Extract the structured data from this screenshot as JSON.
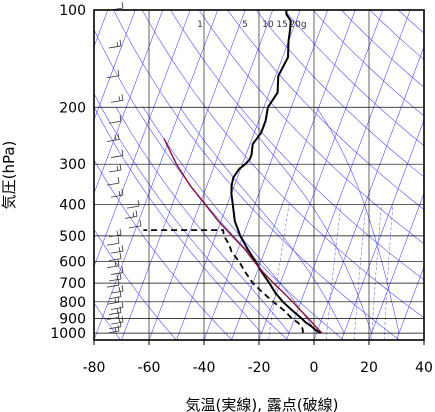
{
  "chart_data": {
    "type": "line",
    "title": "",
    "xlabel": "気温(実線), 露点(破線)",
    "ylabel": "気圧(hPa)",
    "xlim": [
      -80,
      40
    ],
    "ylim": [
      1050,
      100
    ],
    "y_scale": "log",
    "x_ticks": [
      -80,
      -60,
      -40,
      -20,
      0,
      20,
      40
    ],
    "y_ticks": [
      100,
      200,
      300,
      400,
      500,
      600,
      700,
      800,
      900,
      1000
    ],
    "grid": true,
    "mixing_ratio_labels": [
      "1",
      "5",
      "10",
      "15",
      "20g"
    ],
    "colors": {
      "temperature": "#000000",
      "dewpoint": "#000000",
      "parcel": "#8b0f3a",
      "guide_lines": "#5050ff",
      "grid": "#000000",
      "wind_barbs": "#333333"
    },
    "series": [
      {
        "style": "solid",
        "p": [
          1000,
          975,
          950,
          925,
          900,
          850,
          800,
          750,
          700,
          650,
          600,
          550,
          500,
          450,
          400,
          370,
          350,
          330,
          310,
          300,
          290,
          280,
          260,
          240,
          220,
          200,
          180,
          160,
          140,
          125,
          115,
          108,
          103,
          100
        ],
        "t": [
          1.5,
          -1,
          -3,
          -5.5,
          -7.5,
          -12,
          -16.5,
          -20.5,
          -24,
          -28,
          -32,
          -36.5,
          -41,
          -45,
          -48,
          -50,
          -51,
          -51.5,
          -50.5,
          -49,
          -48,
          -48,
          -49,
          -47.5,
          -47.5,
          -48.5,
          -47,
          -49,
          -48,
          -50,
          -51,
          -52,
          -54.5,
          -55
        ]
      },
      {
        "style": "dashed",
        "p": [
          1000,
          975,
          950,
          925,
          900,
          850,
          800,
          750,
          700,
          650,
          600,
          560,
          530,
          500,
          480,
          480
        ],
        "t": [
          -5,
          -5.5,
          -6.5,
          -8.5,
          -11,
          -15,
          -20,
          -25,
          -30,
          -34,
          -38,
          -42,
          -44,
          -47,
          -48,
          -77
        ]
      },
      {
        "style": "parcel",
        "p": [
          1000,
          950,
          900,
          850,
          800,
          750,
          700,
          650,
          600,
          550,
          500,
          450,
          400,
          350,
          300,
          250
        ],
        "t": [
          2,
          -1.5,
          -5,
          -9,
          -13,
          -17.5,
          -22.5,
          -27.5,
          -32.5,
          -37.5,
          -44,
          -51,
          -58,
          -66,
          -74,
          -82
        ]
      }
    ],
    "dry_adiabat_theta_k": [
      200,
      220,
      240,
      260,
      280,
      300,
      320,
      340,
      360,
      380,
      400,
      420,
      440,
      460,
      480,
      500,
      520
    ],
    "moist_adiabat_theta_w_c": [
      -20,
      -10,
      0,
      10,
      20,
      30
    ],
    "mixing_ratio_g_per_kg": [
      1,
      5,
      10,
      15,
      20
    ],
    "wind_barbs_count": 30
  }
}
